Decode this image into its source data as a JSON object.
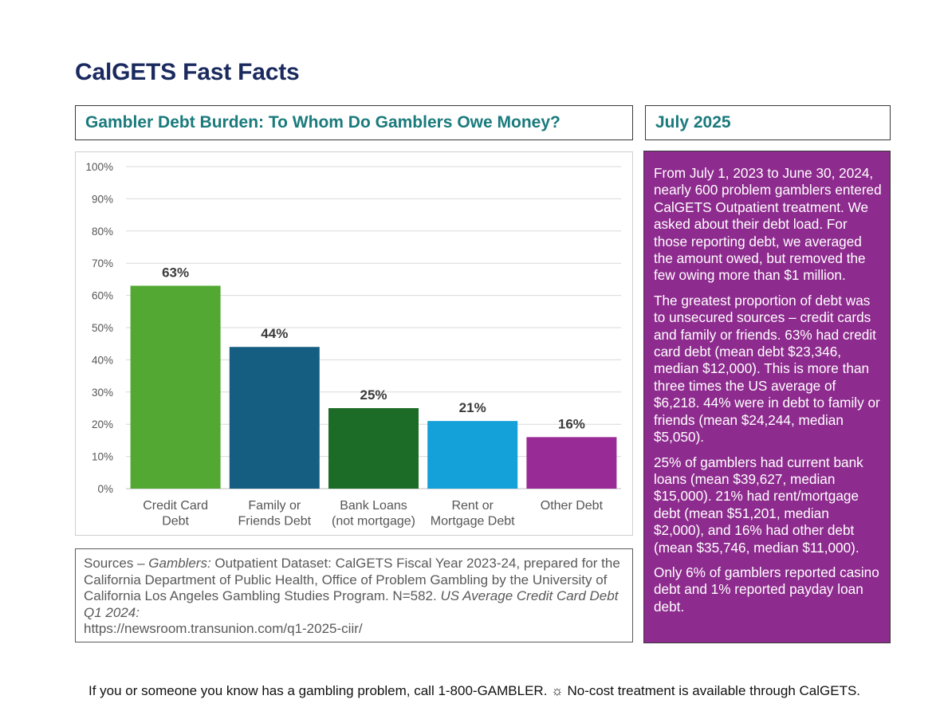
{
  "header": {
    "title": "CalGETS Fast Facts"
  },
  "chart_panel": {
    "title": "Gambler Debt Burden: To Whom Do Gamblers Owe Money?"
  },
  "date_panel": {
    "label": "July 2025"
  },
  "chart_data": {
    "type": "bar",
    "categories": [
      [
        "Credit Card",
        "Debt"
      ],
      [
        "Family or",
        "Friends Debt"
      ],
      [
        "Bank Loans",
        "(not mortgage)"
      ],
      [
        "Rent or",
        "Mortgage Debt"
      ],
      [
        "Other Debt"
      ]
    ],
    "values": [
      63,
      44,
      25,
      21,
      16
    ],
    "value_labels": [
      "63%",
      "44%",
      "25%",
      "21%",
      "16%"
    ],
    "colors": [
      "#52a832",
      "#155e82",
      "#1c6c28",
      "#14a0d8",
      "#992b96"
    ],
    "yticks": [
      "0%",
      "10%",
      "20%",
      "30%",
      "40%",
      "50%",
      "60%",
      "70%",
      "80%",
      "90%",
      "100%"
    ],
    "ylim": [
      0,
      100
    ],
    "grid": true
  },
  "sources": {
    "lead": "Sources – ",
    "dataset_italic": "Gamblers:",
    "dataset_text": " Outpatient Dataset: CalGETS Fiscal Year 2023-24, prepared for the California Department of Public Health, Office of Problem Gambling by the University of California Los Angeles Gambling Studies Program. N=582. ",
    "us_italic": "US Average Credit Card Debt Q1 2024:",
    "url": "https://newsroom.transunion.com/q1-2025-ciir/"
  },
  "sidebar": {
    "paragraphs": [
      "From July 1, 2023 to June 30, 2024, nearly 600 problem gamblers entered CalGETS Outpatient treatment. We asked about their debt load. For those reporting debt, we averaged the amount owed, but removed the few owing more than $1 million.",
      "The greatest proportion of debt was to unsecured sources – credit cards and family or friends. 63% had credit card debt (mean debt $23,346, median $12,000). This is more than three times the US average of $6,218. 44% were in debt to family or friends (mean $24,244, median $5,050).",
      "25% of gamblers had current bank loans (mean $39,627, median $15,000). 21% had rent/mortgage debt (mean $51,201, median $2,000), and 16% had other debt (mean $35,746, median $11,000).",
      "Only 6% of gamblers reported casino debt and 1% reported payday loan debt."
    ]
  },
  "footer": {
    "text": "If you or someone you know has a gambling problem, call 1-800-GAMBLER. ☼ No-cost treatment is available through CalGETS."
  }
}
